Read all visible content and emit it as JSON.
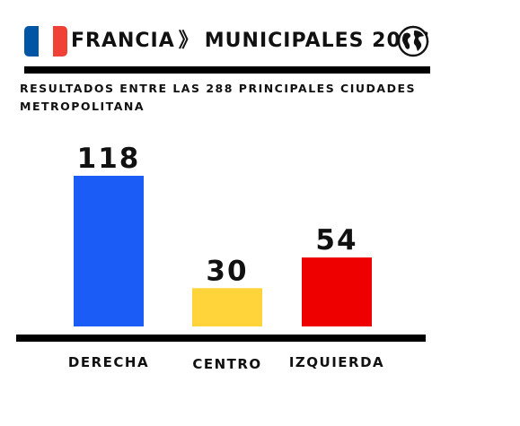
{
  "header": {
    "country": "FRANCIA",
    "separator": "》",
    "event": "MUNICIPALES 2026",
    "flag_icon": "france-flag-icon",
    "globe_icon": "globe-icon",
    "flag_colors": [
      "#0055A4",
      "#FFFFFF",
      "#EF4135"
    ]
  },
  "subtitle": "RESULTADOS ENTRE LAS 288 PRINCIPALES CIUDADES METROPOLITANA",
  "chart_data": {
    "type": "bar",
    "categories": [
      "DERECHA",
      "CENTRO",
      "IZQUIERDA"
    ],
    "values": [
      118,
      30,
      54
    ],
    "colors": [
      "#1A5CF5",
      "#FFD43A",
      "#EE0000"
    ],
    "data_labels": true,
    "ylim": [
      0,
      118
    ],
    "grid": false,
    "legend": "none"
  }
}
